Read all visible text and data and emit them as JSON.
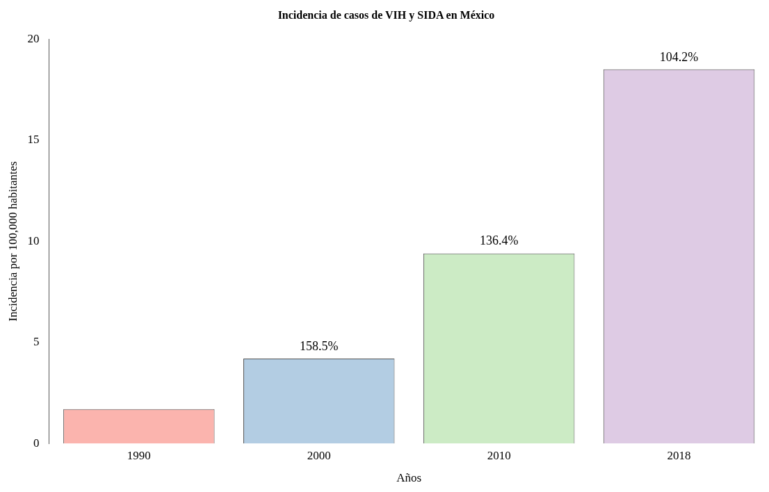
{
  "chart_data": {
    "type": "bar",
    "title": "Incidencia de casos de VIH y SIDA en México",
    "xlabel": "Años",
    "ylabel": "Incidencia por 100,000 habitantes",
    "categories": [
      "1990",
      "2000",
      "2010",
      "2018"
    ],
    "values": [
      1.7,
      4.2,
      9.4,
      18.5
    ],
    "colors": [
      "#fbb4ae",
      "#b3cde3",
      "#ccebc5",
      "#decbe4"
    ],
    "annotations": [
      {
        "text": "158.5%",
        "x": "2000",
        "y": 4.2
      },
      {
        "text": "136.4%",
        "x": "2010",
        "y": 9.4
      },
      {
        "text": "104.2%",
        "x": "2018",
        "y": 18.5
      }
    ],
    "ylim": [
      0,
      20
    ],
    "yticks": [
      0,
      5,
      10,
      15,
      20
    ],
    "grid": false,
    "legend": false
  }
}
